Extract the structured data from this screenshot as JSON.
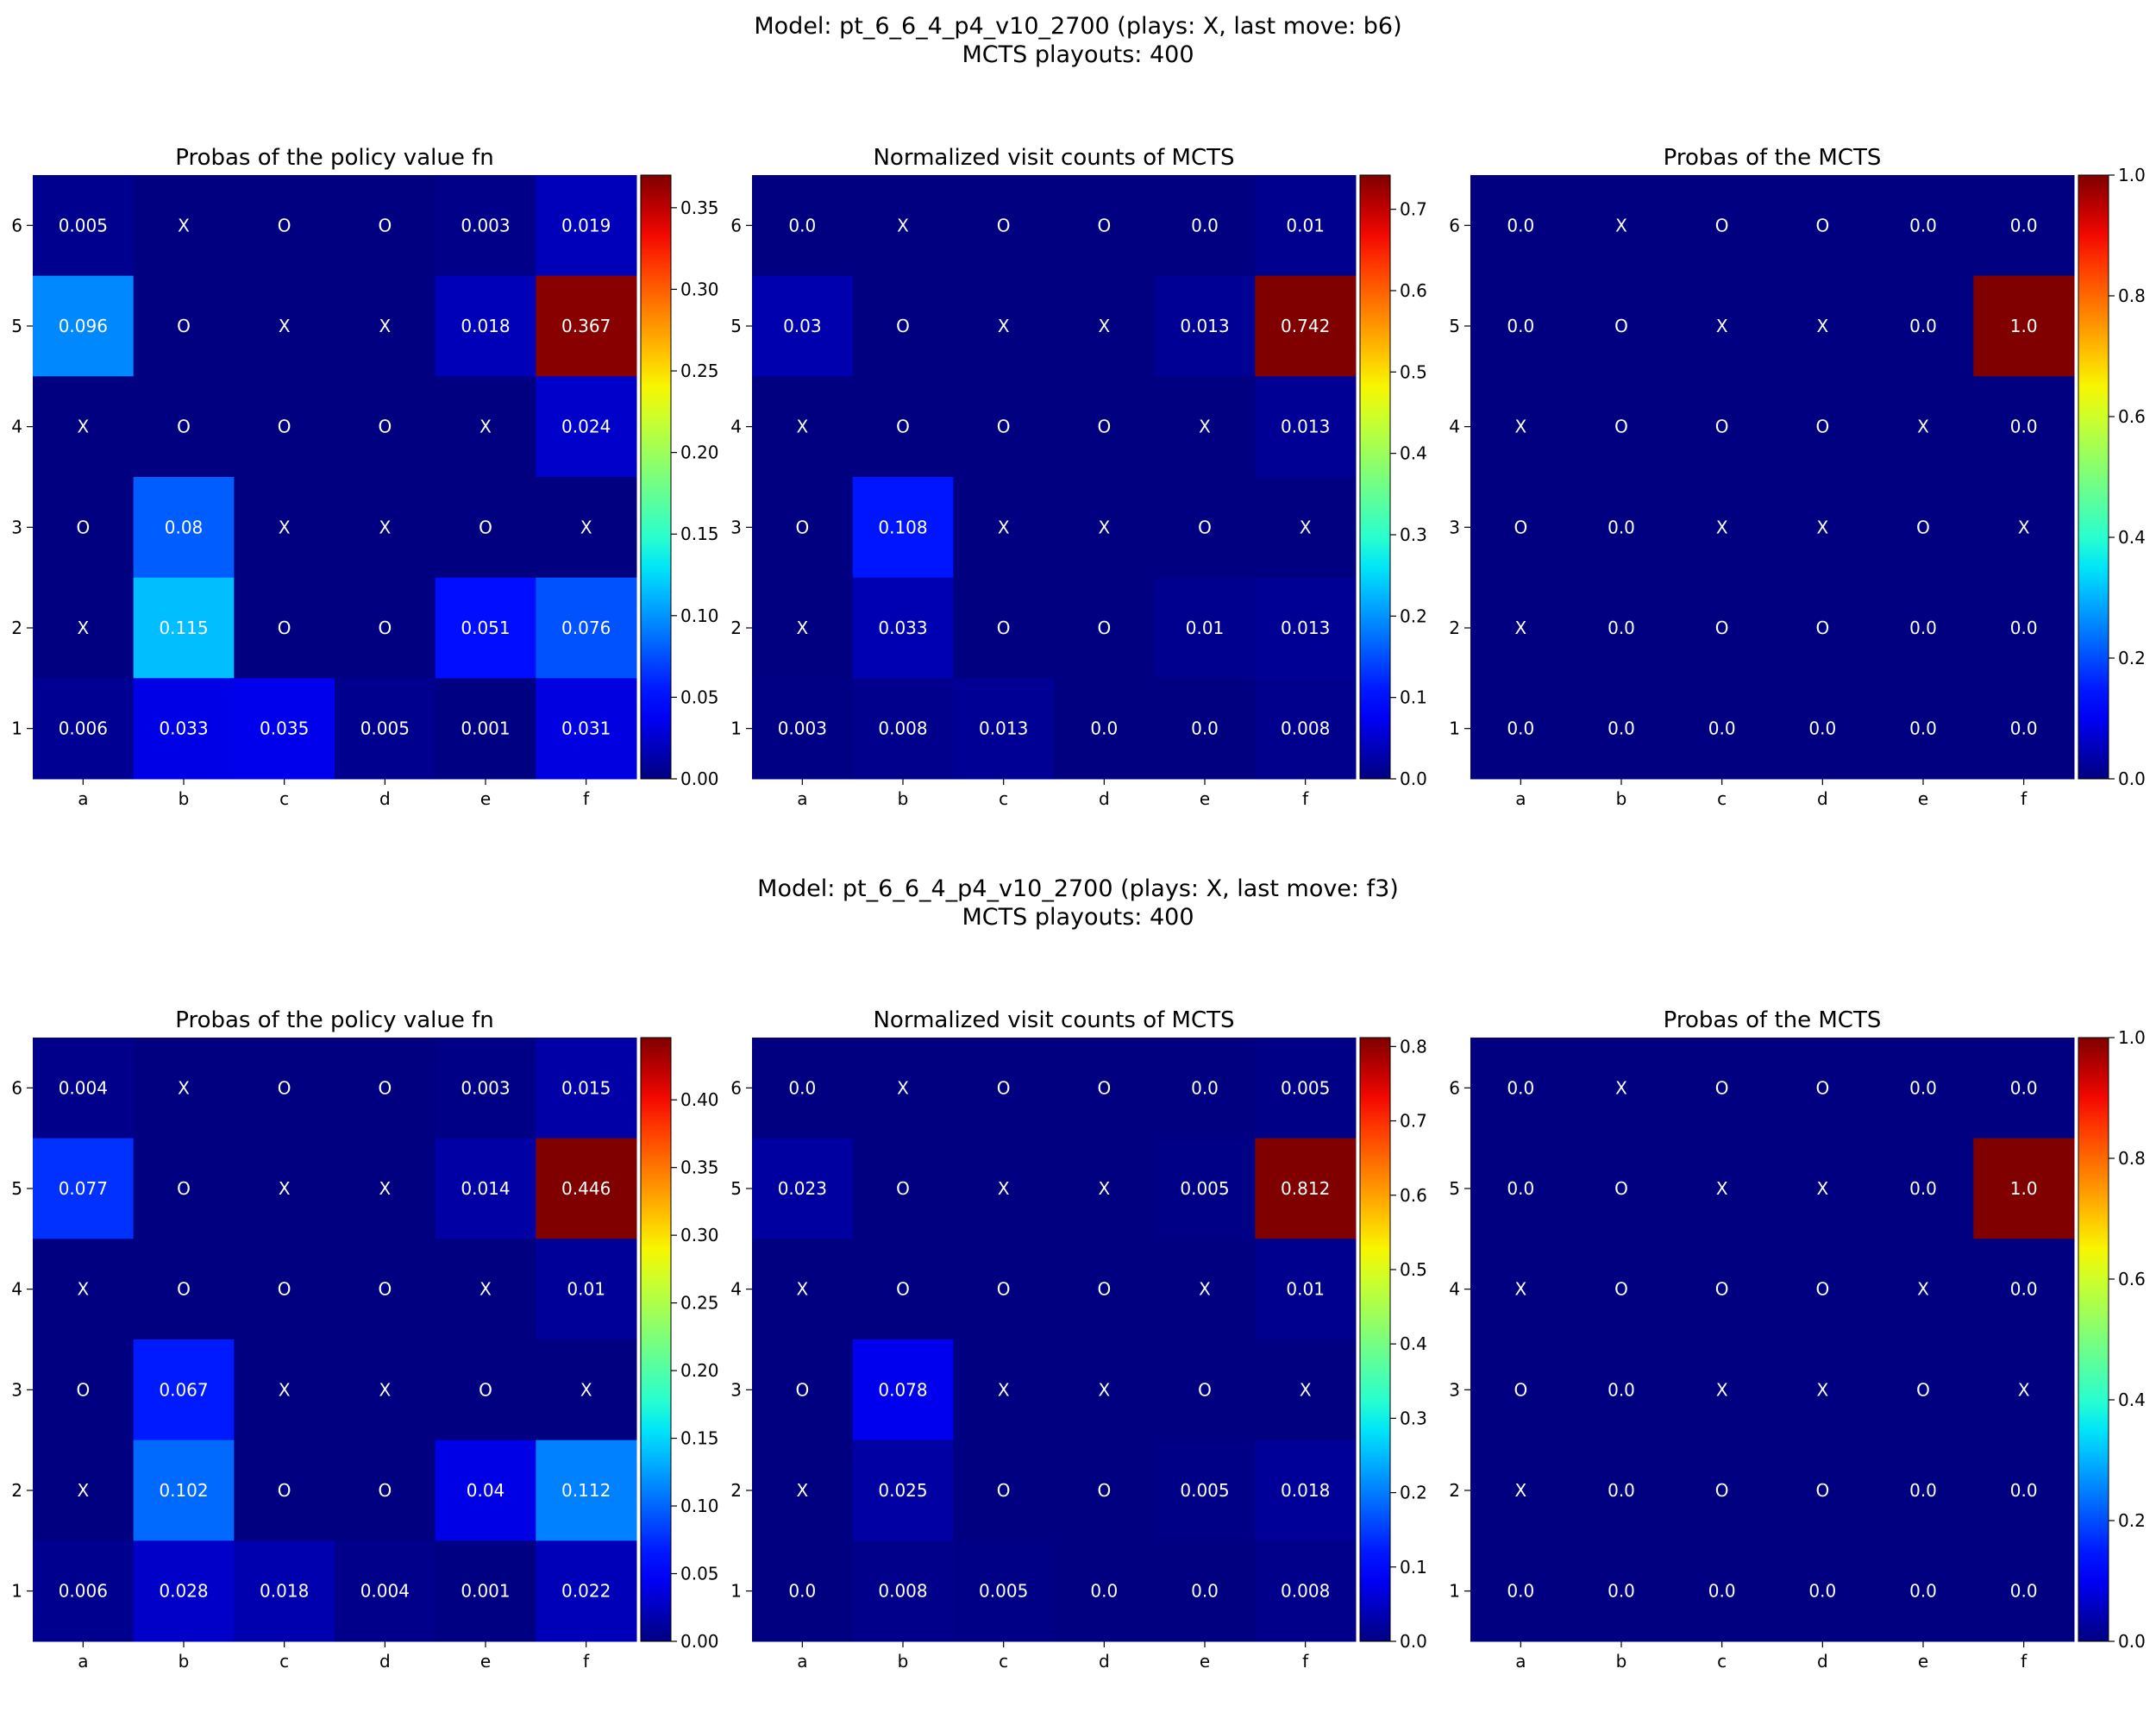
{
  "rows": [
    {
      "suptitle_line1": "Model: pt_6_6_4_p4_v10_2700 (plays: X, last move: b6)",
      "suptitle_line2": "MCTS playouts: 400"
    },
    {
      "suptitle_line1": "Model: pt_6_6_4_p4_v10_2700 (plays: X, last move: f3)",
      "suptitle_line2": "MCTS playouts: 400"
    }
  ],
  "chart_data": [
    {
      "type": "heatmap",
      "title": "Probas of the policy value fn",
      "x": [
        "a",
        "b",
        "c",
        "d",
        "e",
        "f"
      ],
      "y": [
        "6",
        "5",
        "4",
        "3",
        "2",
        "1"
      ],
      "vmin": 0,
      "vmax": 0.37,
      "colorbar_ticks": [
        "0.00",
        "0.05",
        "0.10",
        "0.15",
        "0.20",
        "0.25",
        "0.30",
        "0.35"
      ],
      "cells": [
        [
          "0.005",
          "X",
          "O",
          "O",
          "0.003",
          "0.019"
        ],
        [
          "0.096",
          "O",
          "X",
          "X",
          "0.018",
          "0.367"
        ],
        [
          "X",
          "O",
          "O",
          "O",
          "X",
          "0.024"
        ],
        [
          "O",
          "0.08",
          "X",
          "X",
          "O",
          "X"
        ],
        [
          "X",
          "0.115",
          "O",
          "O",
          "0.051",
          "0.076"
        ],
        [
          "0.006",
          "0.033",
          "0.035",
          "0.005",
          "0.001",
          "0.031"
        ]
      ]
    },
    {
      "type": "heatmap",
      "title": "Normalized visit counts of MCTS",
      "x": [
        "a",
        "b",
        "c",
        "d",
        "e",
        "f"
      ],
      "y": [
        "6",
        "5",
        "4",
        "3",
        "2",
        "1"
      ],
      "vmin": 0,
      "vmax": 0.742,
      "colorbar_ticks": [
        "0.0",
        "0.1",
        "0.2",
        "0.3",
        "0.4",
        "0.5",
        "0.6",
        "0.7"
      ],
      "cells": [
        [
          "0.0",
          "X",
          "O",
          "O",
          "0.0",
          "0.01"
        ],
        [
          "0.03",
          "O",
          "X",
          "X",
          "0.013",
          "0.742"
        ],
        [
          "X",
          "O",
          "O",
          "O",
          "X",
          "0.013"
        ],
        [
          "O",
          "0.108",
          "X",
          "X",
          "O",
          "X"
        ],
        [
          "X",
          "0.033",
          "O",
          "O",
          "0.01",
          "0.013"
        ],
        [
          "0.003",
          "0.008",
          "0.013",
          "0.0",
          "0.0",
          "0.008"
        ]
      ]
    },
    {
      "type": "heatmap",
      "title": "Probas of the MCTS",
      "x": [
        "a",
        "b",
        "c",
        "d",
        "e",
        "f"
      ],
      "y": [
        "6",
        "5",
        "4",
        "3",
        "2",
        "1"
      ],
      "vmin": 0,
      "vmax": 1.0,
      "colorbar_ticks": [
        "0.0",
        "0.2",
        "0.4",
        "0.6",
        "0.8",
        "1.0"
      ],
      "cells": [
        [
          "0.0",
          "X",
          "O",
          "O",
          "0.0",
          "0.0"
        ],
        [
          "0.0",
          "O",
          "X",
          "X",
          "0.0",
          "1.0"
        ],
        [
          "X",
          "O",
          "O",
          "O",
          "X",
          "0.0"
        ],
        [
          "O",
          "0.0",
          "X",
          "X",
          "O",
          "X"
        ],
        [
          "X",
          "0.0",
          "O",
          "O",
          "0.0",
          "0.0"
        ],
        [
          "0.0",
          "0.0",
          "0.0",
          "0.0",
          "0.0",
          "0.0"
        ]
      ]
    },
    {
      "type": "heatmap",
      "title": "Probas of the policy value fn",
      "x": [
        "a",
        "b",
        "c",
        "d",
        "e",
        "f"
      ],
      "y": [
        "6",
        "5",
        "4",
        "3",
        "2",
        "1"
      ],
      "vmin": 0,
      "vmax": 0.446,
      "colorbar_ticks": [
        "0.00",
        "0.05",
        "0.10",
        "0.15",
        "0.20",
        "0.25",
        "0.30",
        "0.35",
        "0.40"
      ],
      "cells": [
        [
          "0.004",
          "X",
          "O",
          "O",
          "0.003",
          "0.015"
        ],
        [
          "0.077",
          "O",
          "X",
          "X",
          "0.014",
          "0.446"
        ],
        [
          "X",
          "O",
          "O",
          "O",
          "X",
          "0.01"
        ],
        [
          "O",
          "0.067",
          "X",
          "X",
          "O",
          "X"
        ],
        [
          "X",
          "0.102",
          "O",
          "O",
          "0.04",
          "0.112"
        ],
        [
          "0.006",
          "0.028",
          "0.018",
          "0.004",
          "0.001",
          "0.022"
        ]
      ]
    },
    {
      "type": "heatmap",
      "title": "Normalized visit counts of MCTS",
      "x": [
        "a",
        "b",
        "c",
        "d",
        "e",
        "f"
      ],
      "y": [
        "6",
        "5",
        "4",
        "3",
        "2",
        "1"
      ],
      "vmin": 0,
      "vmax": 0.812,
      "colorbar_ticks": [
        "0.0",
        "0.1",
        "0.2",
        "0.3",
        "0.4",
        "0.5",
        "0.6",
        "0.7",
        "0.8"
      ],
      "cells": [
        [
          "0.0",
          "X",
          "O",
          "O",
          "0.0",
          "0.005"
        ],
        [
          "0.023",
          "O",
          "X",
          "X",
          "0.005",
          "0.812"
        ],
        [
          "X",
          "O",
          "O",
          "O",
          "X",
          "0.01"
        ],
        [
          "O",
          "0.078",
          "X",
          "X",
          "O",
          "X"
        ],
        [
          "X",
          "0.025",
          "O",
          "O",
          "0.005",
          "0.018"
        ],
        [
          "0.0",
          "0.008",
          "0.005",
          "0.0",
          "0.0",
          "0.008"
        ]
      ]
    },
    {
      "type": "heatmap",
      "title": "Probas of the MCTS",
      "x": [
        "a",
        "b",
        "c",
        "d",
        "e",
        "f"
      ],
      "y": [
        "6",
        "5",
        "4",
        "3",
        "2",
        "1"
      ],
      "vmin": 0,
      "vmax": 1.0,
      "colorbar_ticks": [
        "0.0",
        "0.2",
        "0.4",
        "0.6",
        "0.8",
        "1.0"
      ],
      "cells": [
        [
          "0.0",
          "X",
          "O",
          "O",
          "0.0",
          "0.0"
        ],
        [
          "0.0",
          "O",
          "X",
          "X",
          "0.0",
          "1.0"
        ],
        [
          "X",
          "O",
          "O",
          "O",
          "X",
          "0.0"
        ],
        [
          "O",
          "0.0",
          "X",
          "X",
          "O",
          "X"
        ],
        [
          "X",
          "0.0",
          "O",
          "O",
          "0.0",
          "0.0"
        ],
        [
          "0.0",
          "0.0",
          "0.0",
          "0.0",
          "0.0",
          "0.0"
        ]
      ]
    }
  ]
}
